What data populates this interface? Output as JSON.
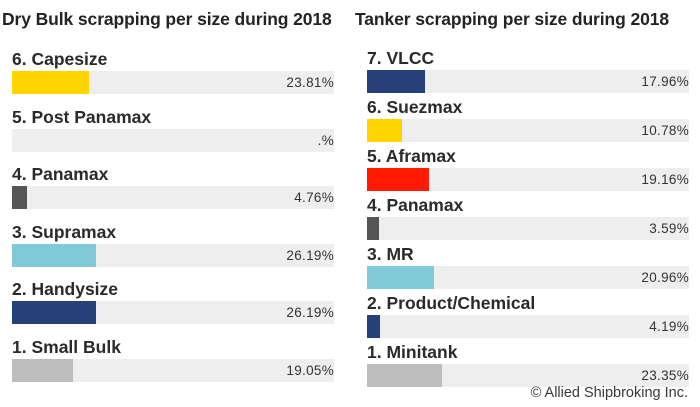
{
  "chart_data": [
    {
      "type": "bar",
      "title": "Dry Bulk scrapping per size during 2018",
      "categories": [
        "6. Capesize",
        "5. Post Panamax",
        "4. Panamax",
        "3. Supramax",
        "2. Handysize",
        "1. Small Bulk"
      ],
      "values": [
        23.81,
        null,
        4.76,
        26.19,
        26.19,
        19.05
      ],
      "value_labels": [
        "23.81%",
        ".%",
        "4.76%",
        "26.19%",
        "26.19%",
        "19.05%"
      ],
      "colors": [
        "#ffd400",
        "#cccccc",
        "#555555",
        "#7fc9d9",
        "#26417a",
        "#bdbdbd"
      ],
      "xlim": [
        0,
        100
      ]
    },
    {
      "type": "bar",
      "title": "Tanker scrapping per size during 2018",
      "categories": [
        "7. VLCC",
        "6. Suezmax",
        "5. Aframax",
        "4. Panamax",
        "3. MR",
        "2. Product/Chemical",
        "1. Minitank"
      ],
      "values": [
        17.96,
        10.78,
        19.16,
        3.59,
        20.96,
        4.19,
        23.35
      ],
      "value_labels": [
        "17.96%",
        "10.78%",
        "19.16%",
        "3.59%",
        "20.96%",
        "4.19%",
        "23.35%"
      ],
      "colors": [
        "#26417a",
        "#ffd400",
        "#ff1a00",
        "#555555",
        "#7fc9d9",
        "#26417a",
        "#bdbdbd"
      ],
      "xlim": [
        0,
        100
      ]
    }
  ],
  "copyright": "© Allied Shipbroking Inc."
}
